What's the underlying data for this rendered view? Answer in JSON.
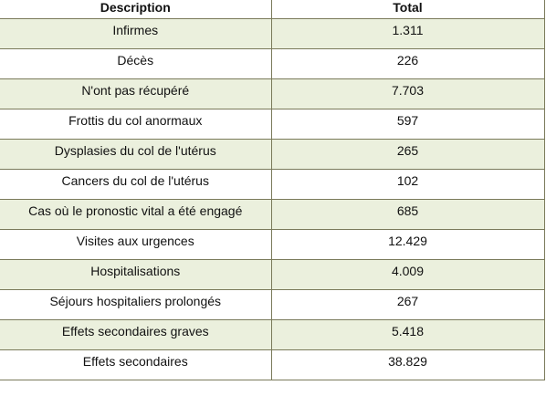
{
  "table": {
    "headers": [
      "Description",
      "Total"
    ],
    "rows": [
      [
        "Infirmes",
        "1.311"
      ],
      [
        "Décès",
        "226"
      ],
      [
        "N'ont pas récupéré",
        "7.703"
      ],
      [
        "Frottis du col anormaux",
        "597"
      ],
      [
        "Dysplasies du col de l'utérus",
        "265"
      ],
      [
        "Cancers du col de l'utérus",
        "102"
      ],
      [
        "Cas où le pronostic vital a été engagé",
        "685"
      ],
      [
        "Visites aux urgences",
        "12.429"
      ],
      [
        "Hospitalisations",
        "4.009"
      ],
      [
        "Séjours hospitaliers prolongés",
        "267"
      ],
      [
        "Effets secondaires graves",
        "5.418"
      ],
      [
        "Effets secondaires",
        "38.829"
      ]
    ]
  },
  "colors": {
    "odd_row": "#ebf0dd",
    "even_row": "#ffffff",
    "border": "#7a7a5a"
  }
}
